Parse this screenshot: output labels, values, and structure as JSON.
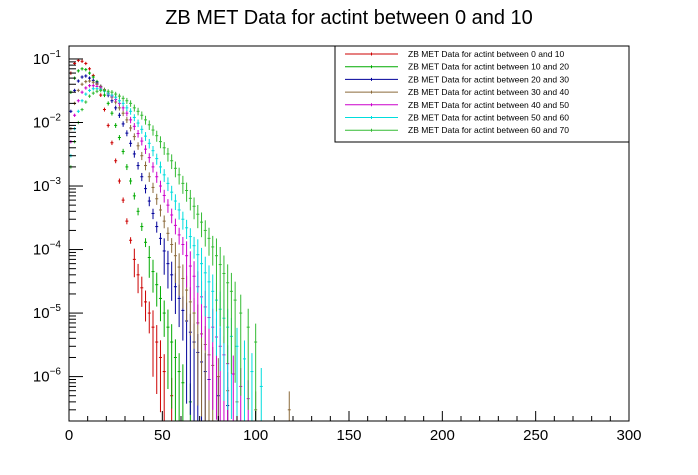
{
  "chart_data": {
    "type": "scatter",
    "title": "ZB MET Data for actint between 0 and 10",
    "xlabel": "",
    "ylabel": "",
    "xlim": [
      0,
      300
    ],
    "ylim": [
      2e-07,
      0.16
    ],
    "y_scale": "log",
    "grid": false,
    "legend_position": "top-right",
    "x_ticks": [
      {
        "value": 0,
        "label": "0"
      },
      {
        "value": 50,
        "label": "50"
      },
      {
        "value": 100,
        "label": "100"
      },
      {
        "value": 150,
        "label": "150"
      },
      {
        "value": 200,
        "label": "200"
      },
      {
        "value": 250,
        "label": "250"
      },
      {
        "value": 300,
        "label": "300"
      }
    ],
    "y_ticks": [
      {
        "value": 0.1,
        "base": "10",
        "exp": "−1"
      },
      {
        "value": 0.01,
        "base": "10",
        "exp": "−2"
      },
      {
        "value": 0.001,
        "base": "10",
        "exp": "−3"
      },
      {
        "value": 0.0001,
        "base": "10",
        "exp": "−4"
      },
      {
        "value": 1e-05,
        "base": "10",
        "exp": "−5"
      },
      {
        "value": 1e-06,
        "base": "10",
        "exp": "−6"
      }
    ],
    "series": [
      {
        "name": "ZB MET Data for actint between 0 and 10",
        "color": "#cc0000",
        "points": [
          [
            1,
            0.06
          ],
          [
            3,
            0.085
          ],
          [
            5,
            0.095
          ],
          [
            7,
            0.092
          ],
          [
            9,
            0.085
          ],
          [
            11,
            0.07
          ],
          [
            13,
            0.055
          ],
          [
            15,
            0.04
          ],
          [
            17,
            0.027
          ],
          [
            19,
            0.016
          ],
          [
            21,
            0.009
          ],
          [
            23,
            0.0048
          ],
          [
            25,
            0.0025
          ],
          [
            27,
            0.0012
          ],
          [
            29,
            0.0006
          ],
          [
            31,
            0.00028
          ],
          [
            33,
            0.00014
          ],
          [
            35,
            7e-05
          ],
          [
            37,
            4e-05
          ],
          [
            39,
            2.5e-05
          ],
          [
            41,
            1.5e-05
          ],
          [
            43,
            1e-05
          ],
          [
            45,
            6e-06
          ],
          [
            47,
            3.5e-06
          ],
          [
            49,
            2e-06
          ],
          [
            51,
            1.2e-06
          ],
          [
            55,
            5e-07
          ]
        ]
      },
      {
        "name": "ZB MET Data for actint between 10 and 20",
        "color": "#00aa00",
        "points": [
          [
            1,
            0.03
          ],
          [
            3,
            0.05
          ],
          [
            5,
            0.065
          ],
          [
            7,
            0.07
          ],
          [
            9,
            0.068
          ],
          [
            11,
            0.06
          ],
          [
            13,
            0.052
          ],
          [
            15,
            0.044
          ],
          [
            17,
            0.035
          ],
          [
            19,
            0.027
          ],
          [
            21,
            0.02
          ],
          [
            23,
            0.014
          ],
          [
            25,
            0.009
          ],
          [
            27,
            0.0058
          ],
          [
            29,
            0.0035
          ],
          [
            31,
            0.002
          ],
          [
            33,
            0.0012
          ],
          [
            35,
            0.0007
          ],
          [
            37,
            0.0004
          ],
          [
            39,
            0.00023
          ],
          [
            41,
            0.00013
          ],
          [
            43,
            7.5e-05
          ],
          [
            45,
            4.5e-05
          ],
          [
            47,
            2.8e-05
          ],
          [
            49,
            1.7e-05
          ],
          [
            51,
            1e-05
          ],
          [
            53,
            6e-06
          ],
          [
            55,
            3.5e-06
          ],
          [
            57,
            2e-06
          ],
          [
            59,
            1.2e-06
          ],
          [
            61,
            8e-07
          ],
          [
            65,
            4e-07
          ]
        ]
      },
      {
        "name": "ZB MET Data for actint between 20 and 30",
        "color": "#000099",
        "points": [
          [
            1,
            0.015
          ],
          [
            3,
            0.032
          ],
          [
            5,
            0.045
          ],
          [
            7,
            0.052
          ],
          [
            9,
            0.054
          ],
          [
            11,
            0.05
          ],
          [
            13,
            0.046
          ],
          [
            15,
            0.042
          ],
          [
            17,
            0.037
          ],
          [
            19,
            0.032
          ],
          [
            21,
            0.027
          ],
          [
            23,
            0.022
          ],
          [
            25,
            0.017
          ],
          [
            27,
            0.013
          ],
          [
            29,
            0.0095
          ],
          [
            31,
            0.0068
          ],
          [
            33,
            0.0047
          ],
          [
            35,
            0.0032
          ],
          [
            37,
            0.0021
          ],
          [
            39,
            0.0014
          ],
          [
            41,
            0.00091
          ],
          [
            43,
            0.00058
          ],
          [
            45,
            0.00037
          ],
          [
            47,
            0.00023
          ],
          [
            49,
            0.00015
          ],
          [
            51,
            9.5e-05
          ],
          [
            53,
            6e-05
          ],
          [
            55,
            4e-05
          ],
          [
            57,
            2.6e-05
          ],
          [
            59,
            1.7e-05
          ],
          [
            61,
            1.1e-05
          ],
          [
            63,
            7.5e-06
          ],
          [
            65,
            5e-06
          ],
          [
            67,
            3.5e-06
          ],
          [
            69,
            2.4e-06
          ],
          [
            71,
            1.7e-06
          ],
          [
            73,
            1.2e-06
          ],
          [
            75,
            9e-07
          ],
          [
            80,
            5e-07
          ],
          [
            85,
            3.5e-07
          ]
        ]
      },
      {
        "name": "ZB MET Data for actint between 30 and 40",
        "color": "#8b6a3a",
        "points": [
          [
            1,
            0.008
          ],
          [
            3,
            0.02
          ],
          [
            5,
            0.032
          ],
          [
            7,
            0.04
          ],
          [
            9,
            0.044
          ],
          [
            11,
            0.045
          ],
          [
            13,
            0.043
          ],
          [
            15,
            0.04
          ],
          [
            17,
            0.037
          ],
          [
            19,
            0.033
          ],
          [
            21,
            0.029
          ],
          [
            23,
            0.025
          ],
          [
            25,
            0.021
          ],
          [
            27,
            0.017
          ],
          [
            29,
            0.014
          ],
          [
            31,
            0.011
          ],
          [
            33,
            0.0082
          ],
          [
            35,
            0.006
          ],
          [
            37,
            0.0043
          ],
          [
            39,
            0.003
          ],
          [
            41,
            0.0021
          ],
          [
            43,
            0.0014
          ],
          [
            45,
            0.00095
          ],
          [
            47,
            0.00063
          ],
          [
            49,
            0.00042
          ],
          [
            51,
            0.00028
          ],
          [
            53,
            0.00018
          ],
          [
            55,
            0.00012
          ],
          [
            57,
            8e-05
          ],
          [
            59,
            5.3e-05
          ],
          [
            61,
            3.5e-05
          ],
          [
            63,
            2.3e-05
          ],
          [
            65,
            1.5e-05
          ],
          [
            67,
            1e-05
          ],
          [
            69,
            7e-06
          ],
          [
            71,
            4.7e-06
          ],
          [
            73,
            3.2e-06
          ],
          [
            75,
            2.2e-06
          ],
          [
            77,
            1.5e-06
          ],
          [
            80,
            1e-06
          ],
          [
            85,
            6e-07
          ],
          [
            90,
            4e-07
          ],
          [
            100,
            3e-07
          ],
          [
            118,
            3e-07
          ]
        ]
      },
      {
        "name": "ZB MET Data for actint between 40 and 50",
        "color": "#cc00cc",
        "points": [
          [
            1,
            0.005
          ],
          [
            3,
            0.013
          ],
          [
            5,
            0.022
          ],
          [
            7,
            0.03
          ],
          [
            9,
            0.035
          ],
          [
            11,
            0.038
          ],
          [
            13,
            0.038
          ],
          [
            15,
            0.037
          ],
          [
            17,
            0.035
          ],
          [
            19,
            0.032
          ],
          [
            21,
            0.029
          ],
          [
            23,
            0.026
          ],
          [
            25,
            0.023
          ],
          [
            27,
            0.02
          ],
          [
            29,
            0.017
          ],
          [
            31,
            0.014
          ],
          [
            33,
            0.011
          ],
          [
            35,
            0.0087
          ],
          [
            37,
            0.0067
          ],
          [
            39,
            0.0051
          ],
          [
            41,
            0.0038
          ],
          [
            43,
            0.0028
          ],
          [
            45,
            0.002
          ],
          [
            47,
            0.0014
          ],
          [
            49,
            0.001
          ],
          [
            51,
            0.00071
          ],
          [
            53,
            0.0005
          ],
          [
            55,
            0.00035
          ],
          [
            57,
            0.00024
          ],
          [
            59,
            0.00017
          ],
          [
            61,
            0.00012
          ],
          [
            63,
            8e-05
          ],
          [
            65,
            5.5e-05
          ],
          [
            67,
            3.8e-05
          ],
          [
            69,
            2.6e-05
          ],
          [
            71,
            1.8e-05
          ],
          [
            73,
            1.25e-05
          ],
          [
            75,
            8.5e-06
          ],
          [
            77,
            6e-06
          ],
          [
            79,
            4.2e-06
          ],
          [
            81,
            3e-06
          ],
          [
            83,
            2.2e-06
          ],
          [
            85,
            1.6e-06
          ],
          [
            88,
            1.1e-06
          ],
          [
            92,
            7e-07
          ],
          [
            96,
            4.5e-07
          ]
        ]
      },
      {
        "name": "ZB MET Data for actint between 50 and 60",
        "color": "#00dddd",
        "points": [
          [
            1,
            0.003
          ],
          [
            3,
            0.008
          ],
          [
            5,
            0.015
          ],
          [
            7,
            0.022
          ],
          [
            9,
            0.028
          ],
          [
            11,
            0.032
          ],
          [
            13,
            0.034
          ],
          [
            15,
            0.034
          ],
          [
            17,
            0.033
          ],
          [
            19,
            0.031
          ],
          [
            21,
            0.029
          ],
          [
            23,
            0.027
          ],
          [
            25,
            0.025
          ],
          [
            27,
            0.022
          ],
          [
            29,
            0.02
          ],
          [
            31,
            0.017
          ],
          [
            33,
            0.015
          ],
          [
            35,
            0.012
          ],
          [
            37,
            0.0098
          ],
          [
            39,
            0.0078
          ],
          [
            41,
            0.0061
          ],
          [
            43,
            0.0047
          ],
          [
            45,
            0.0036
          ],
          [
            47,
            0.0027
          ],
          [
            49,
            0.002
          ],
          [
            51,
            0.0015
          ],
          [
            53,
            0.0011
          ],
          [
            55,
            0.0008
          ],
          [
            57,
            0.00058
          ],
          [
            59,
            0.00042
          ],
          [
            61,
            0.0003
          ],
          [
            63,
            0.00022
          ],
          [
            65,
            0.00016
          ],
          [
            67,
            0.000115
          ],
          [
            69,
            8.3e-05
          ],
          [
            71,
            6e-05
          ],
          [
            73,
            4.3e-05
          ],
          [
            75,
            3.1e-05
          ],
          [
            77,
            2.2e-05
          ],
          [
            79,
            1.6e-05
          ],
          [
            81,
            1.15e-05
          ],
          [
            83,
            8.3e-06
          ],
          [
            85,
            6e-06
          ],
          [
            87,
            4.3e-06
          ],
          [
            90,
            3e-06
          ],
          [
            94,
            1.9e-06
          ],
          [
            98,
            1.2e-06
          ],
          [
            103,
            7e-07
          ]
        ]
      },
      {
        "name": "ZB MET Data for actint between 60 and 70",
        "color": "#33bb33",
        "points": [
          [
            1,
            0.002
          ],
          [
            3,
            0.005
          ],
          [
            5,
            0.01
          ],
          [
            7,
            0.016
          ],
          [
            9,
            0.021
          ],
          [
            11,
            0.026
          ],
          [
            13,
            0.029
          ],
          [
            15,
            0.031
          ],
          [
            17,
            0.032
          ],
          [
            19,
            0.032
          ],
          [
            21,
            0.031
          ],
          [
            23,
            0.03
          ],
          [
            25,
            0.028
          ],
          [
            27,
            0.026
          ],
          [
            29,
            0.024
          ],
          [
            31,
            0.022
          ],
          [
            33,
            0.02
          ],
          [
            35,
            0.017
          ],
          [
            37,
            0.015
          ],
          [
            39,
            0.013
          ],
          [
            41,
            0.011
          ],
          [
            43,
            0.0092
          ],
          [
            45,
            0.0076
          ],
          [
            47,
            0.0062
          ],
          [
            49,
            0.005
          ],
          [
            51,
            0.004
          ],
          [
            53,
            0.0032
          ],
          [
            55,
            0.0025
          ],
          [
            57,
            0.0019
          ],
          [
            59,
            0.0015
          ],
          [
            61,
            0.0011
          ],
          [
            63,
            0.00085
          ],
          [
            65,
            0.00064
          ],
          [
            67,
            0.00048
          ],
          [
            69,
            0.00036
          ],
          [
            71,
            0.00027
          ],
          [
            73,
            0.0002
          ],
          [
            75,
            0.00015
          ],
          [
            77,
            0.00011
          ],
          [
            79,
            8e-05
          ],
          [
            81,
            5.8e-05
          ],
          [
            83,
            4.2e-05
          ],
          [
            85,
            3e-05
          ],
          [
            87,
            2.2e-05
          ],
          [
            89,
            1.6e-05
          ],
          [
            92,
            1e-05
          ],
          [
            96,
            6e-06
          ],
          [
            100,
            3.5e-06
          ]
        ]
      }
    ]
  }
}
